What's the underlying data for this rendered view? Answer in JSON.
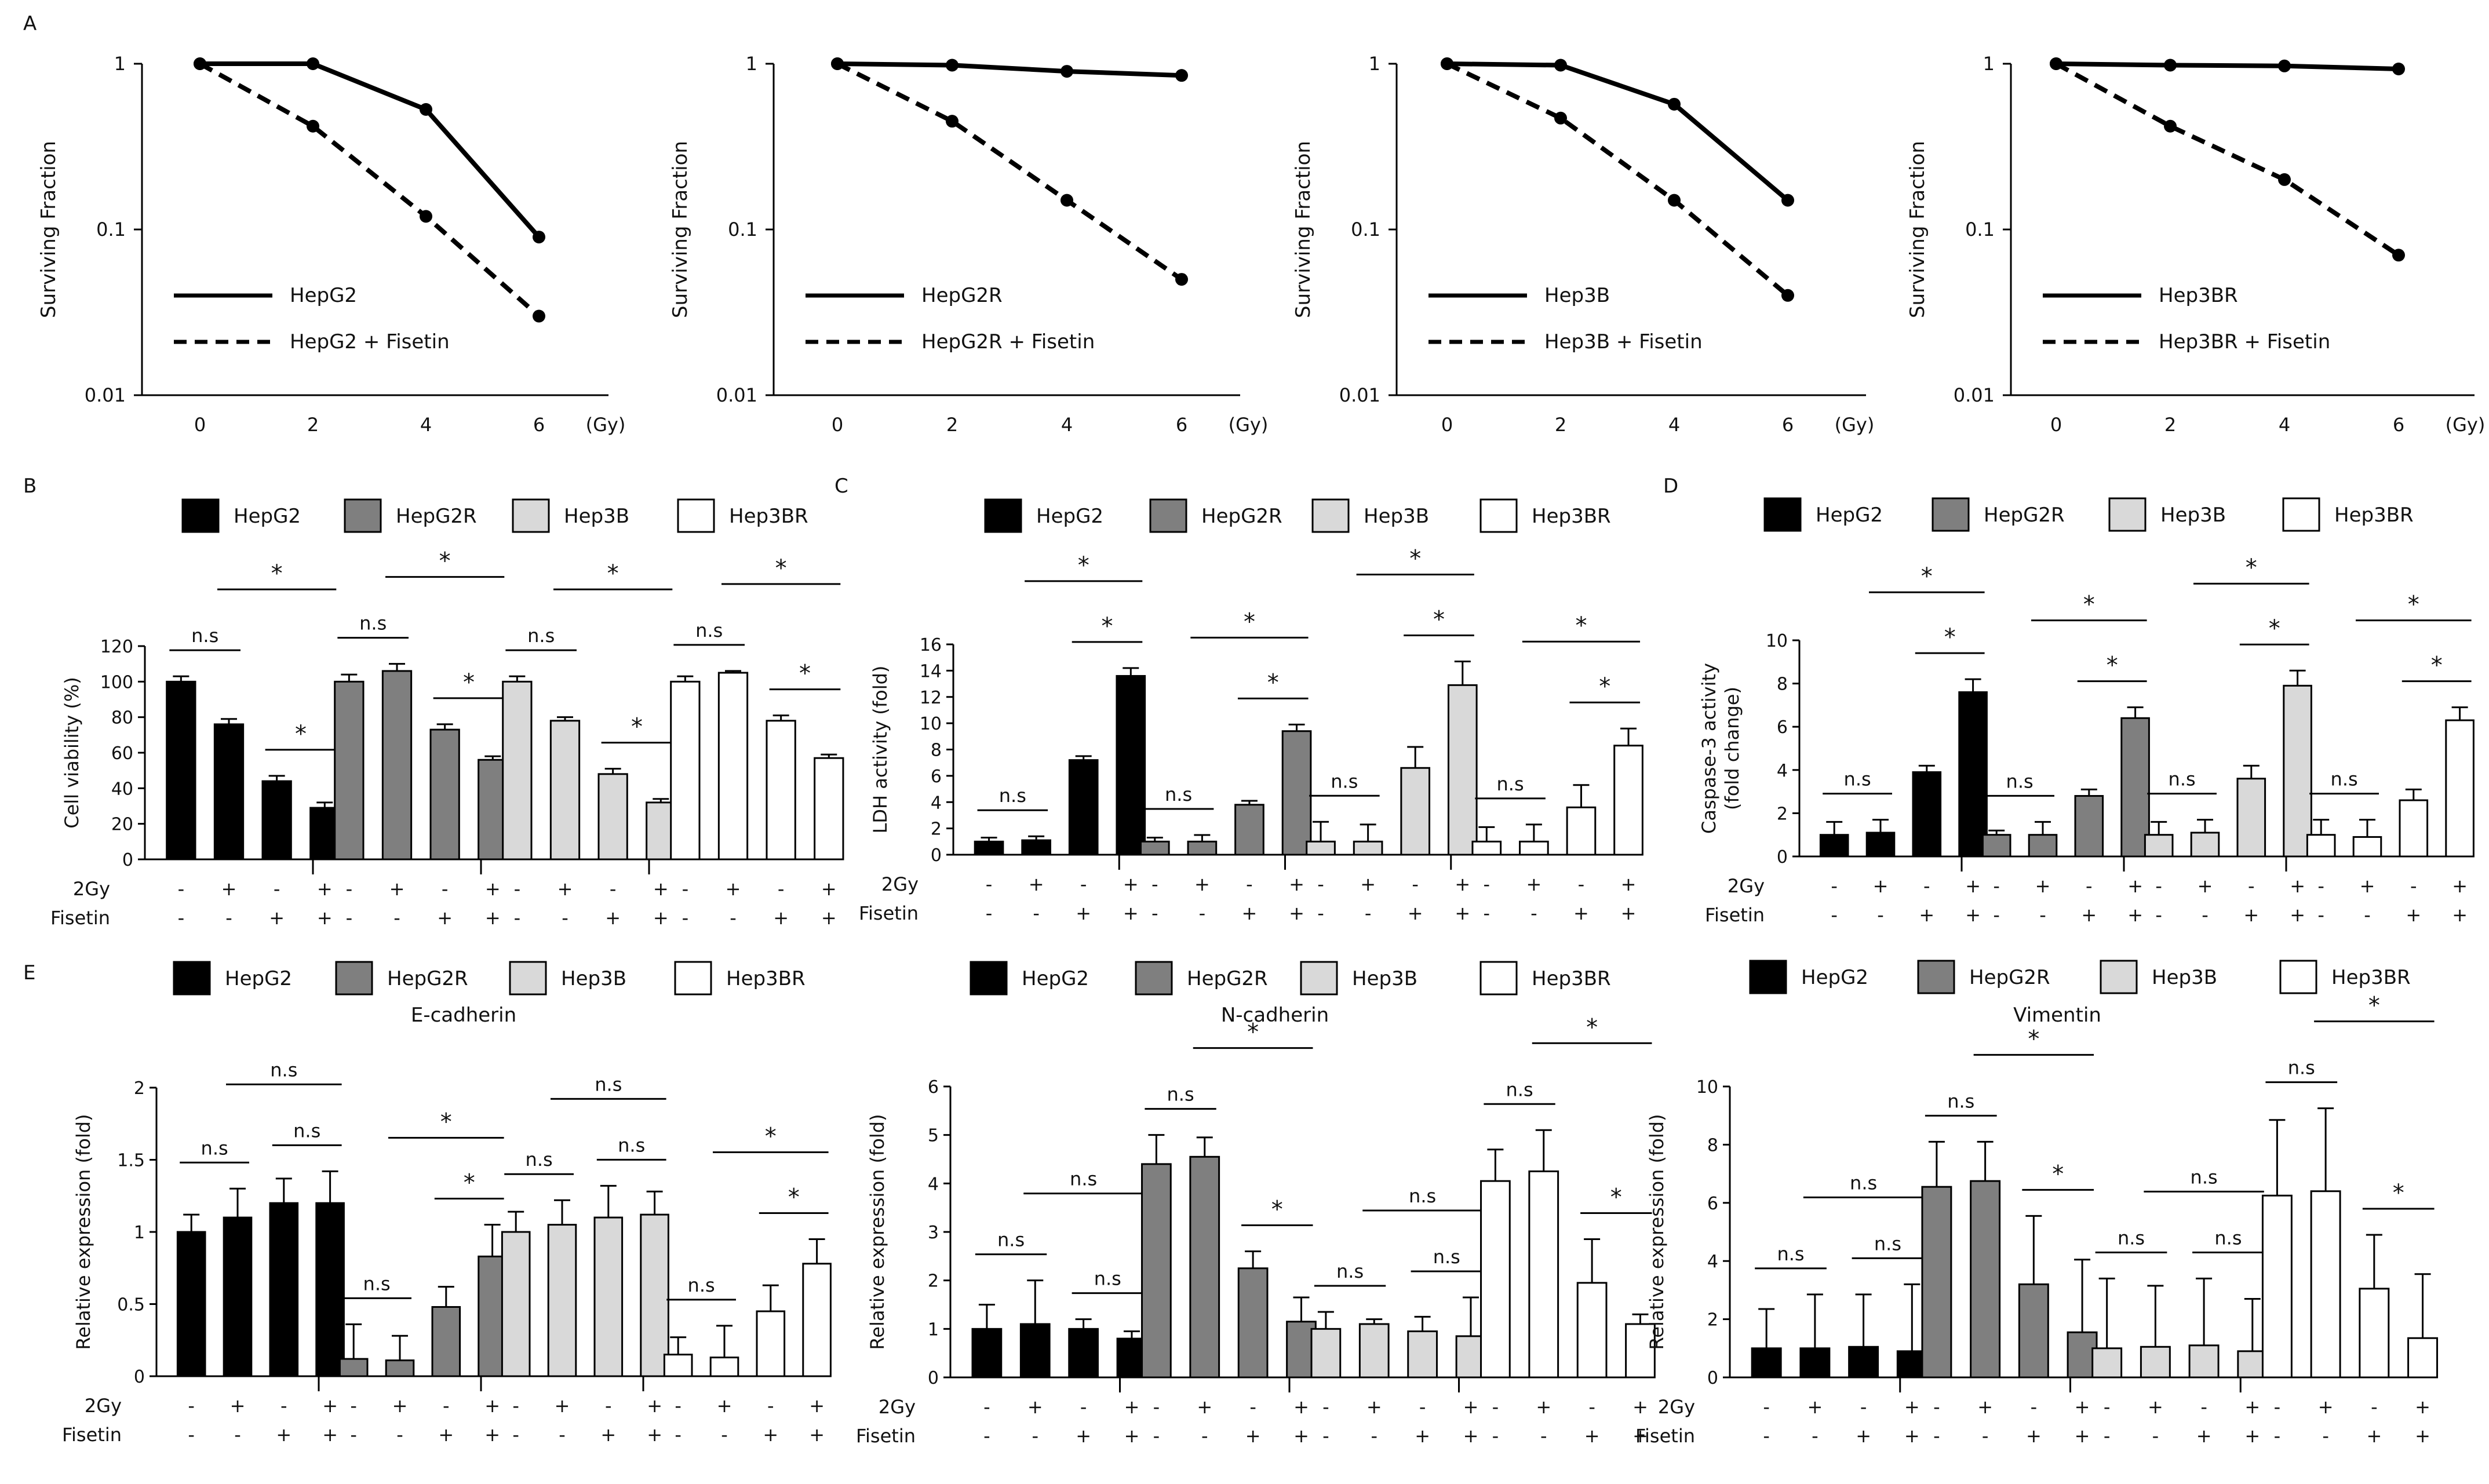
{
  "panel_labels": {
    "A": "A",
    "B": "B",
    "C": "C",
    "D": "D",
    "E": "E"
  },
  "colors": {
    "HepG2": "#000000",
    "HepG2R": "#7f7f7f",
    "Hep3B": "#d9d9d9",
    "Hep3BR": "#ffffff"
  },
  "row_labels": {
    "radiation": "2Gy",
    "fisetin": "Fisetin"
  },
  "chart_data": [
    {
      "id": "A1",
      "type": "line",
      "yscale": "log",
      "title": "",
      "xlabel": "(Gy)",
      "ylabel": "Surviving Fraction",
      "x": [
        0,
        2,
        4,
        6
      ],
      "ylim": [
        0.01,
        1
      ],
      "yticks": [
        "1",
        "0.1",
        "0.01"
      ],
      "xticks": [
        "0",
        "2",
        "4",
        "6"
      ],
      "series": [
        {
          "name": "HepG2",
          "style": "solid",
          "values": [
            1,
            1,
            0.53,
            0.09
          ]
        },
        {
          "name": "HepG2 + Fisetin",
          "style": "dashed",
          "values": [
            1,
            0.42,
            0.12,
            0.03
          ]
        }
      ]
    },
    {
      "id": "A2",
      "type": "line",
      "yscale": "log",
      "title": "",
      "xlabel": "(Gy)",
      "ylabel": "Surviving Fraction",
      "x": [
        0,
        2,
        4,
        6
      ],
      "ylim": [
        0.01,
        1
      ],
      "yticks": [
        "1",
        "0.1",
        "0.01"
      ],
      "xticks": [
        "0",
        "2",
        "4",
        "6"
      ],
      "series": [
        {
          "name": "HepG2R",
          "style": "solid",
          "values": [
            1,
            0.98,
            0.9,
            0.85
          ]
        },
        {
          "name": "HepG2R + Fisetin",
          "style": "dashed",
          "values": [
            1,
            0.45,
            0.15,
            0.05
          ]
        }
      ]
    },
    {
      "id": "A3",
      "type": "line",
      "yscale": "log",
      "title": "",
      "xlabel": "(Gy)",
      "ylabel": "Surviving Fraction",
      "x": [
        0,
        2,
        4,
        6
      ],
      "ylim": [
        0.01,
        1
      ],
      "yticks": [
        "1",
        "0.1",
        "0.01"
      ],
      "xticks": [
        "0",
        "2",
        "4",
        "6"
      ],
      "series": [
        {
          "name": "Hep3B",
          "style": "solid",
          "values": [
            1,
            0.98,
            0.57,
            0.15
          ]
        },
        {
          "name": "Hep3B + Fisetin",
          "style": "dashed",
          "values": [
            1,
            0.47,
            0.15,
            0.04
          ]
        }
      ]
    },
    {
      "id": "A4",
      "type": "line",
      "yscale": "log",
      "title": "",
      "xlabel": "(Gy)",
      "ylabel": "Surviving Fraction",
      "x": [
        0,
        2,
        4,
        6
      ],
      "ylim": [
        0.01,
        1
      ],
      "yticks": [
        "1",
        "0.1",
        "0.01"
      ],
      "xticks": [
        "0",
        "2",
        "4",
        "6"
      ],
      "series": [
        {
          "name": "Hep3BR",
          "style": "solid",
          "values": [
            1,
            0.98,
            0.97,
            0.93
          ]
        },
        {
          "name": "Hep3BR + Fisetin",
          "style": "dashed",
          "values": [
            1,
            0.42,
            0.2,
            0.07
          ]
        }
      ]
    },
    {
      "id": "B",
      "type": "bar",
      "title": "",
      "ylabel": "Cell viability (%)",
      "ylim": [
        0,
        120
      ],
      "yticks": [
        "0",
        "20",
        "40",
        "60",
        "80",
        "100",
        "120"
      ],
      "legend": [
        "HepG2",
        "HepG2R",
        "Hep3B",
        "Hep3BR"
      ],
      "conditions": {
        "2Gy": [
          "-",
          "+",
          "-",
          "+"
        ],
        "Fisetin": [
          "-",
          "-",
          "+",
          "+"
        ]
      },
      "series": [
        {
          "name": "HepG2",
          "values": [
            100,
            76,
            44,
            29
          ],
          "errors": [
            3,
            3,
            3,
            3
          ]
        },
        {
          "name": "HepG2R",
          "values": [
            100,
            106,
            73,
            56
          ],
          "errors": [
            4,
            4,
            3,
            2
          ]
        },
        {
          "name": "Hep3B",
          "values": [
            100,
            78,
            48,
            32
          ],
          "errors": [
            3,
            2,
            3,
            2
          ]
        },
        {
          "name": "Hep3BR",
          "values": [
            100,
            105,
            78,
            57
          ],
          "errors": [
            3,
            1,
            3,
            2
          ]
        }
      ],
      "significance": [
        [
          "n.s",
          "*",
          "*"
        ],
        [
          "n.s",
          "*",
          "*"
        ],
        [
          "n.s",
          "*",
          "*"
        ],
        [
          "n.s",
          "*",
          "*"
        ]
      ]
    },
    {
      "id": "C",
      "type": "bar",
      "title": "",
      "ylabel": "LDH activity (fold)",
      "ylim": [
        0,
        16
      ],
      "yticks": [
        "0",
        "2",
        "4",
        "6",
        "8",
        "10",
        "12",
        "14",
        "16"
      ],
      "legend": [
        "HepG2",
        "HepG2R",
        "Hep3B",
        "Hep3BR"
      ],
      "conditions": {
        "2Gy": [
          "-",
          "+",
          "-",
          "+"
        ],
        "Fisetin": [
          "-",
          "-",
          "+",
          "+"
        ]
      },
      "series": [
        {
          "name": "HepG2",
          "values": [
            1,
            1.1,
            7.2,
            13.6
          ],
          "errors": [
            0.3,
            0.3,
            0.3,
            0.6
          ]
        },
        {
          "name": "HepG2R",
          "values": [
            1,
            1,
            3.8,
            9.4
          ],
          "errors": [
            0.3,
            0.5,
            0.3,
            0.5
          ]
        },
        {
          "name": "Hep3B",
          "values": [
            1,
            1,
            6.6,
            12.9
          ],
          "errors": [
            1.5,
            1.3,
            1.6,
            1.8
          ]
        },
        {
          "name": "Hep3BR",
          "values": [
            1,
            1,
            3.6,
            8.3
          ],
          "errors": [
            1.1,
            1.3,
            1.7,
            1.3
          ]
        }
      ],
      "significance": [
        [
          "n.s",
          "*",
          "*"
        ],
        [
          "n.s",
          "*",
          "*"
        ],
        [
          "n.s",
          "*",
          "*"
        ],
        [
          "n.s",
          "*",
          "*"
        ]
      ]
    },
    {
      "id": "D",
      "type": "bar",
      "title": "",
      "ylabel": "Caspase-3 activity (fold change)",
      "ylim": [
        0,
        10
      ],
      "yticks": [
        "0",
        "2",
        "4",
        "6",
        "8",
        "10"
      ],
      "legend": [
        "HepG2",
        "HepG2R",
        "Hep3B",
        "Hep3BR"
      ],
      "conditions": {
        "2Gy": [
          "-",
          "+",
          "-",
          "+"
        ],
        "Fisetin": [
          "-",
          "-",
          "+",
          "+"
        ]
      },
      "series": [
        {
          "name": "HepG2",
          "values": [
            1,
            1.1,
            3.9,
            7.6
          ],
          "errors": [
            0.6,
            0.6,
            0.3,
            0.6
          ]
        },
        {
          "name": "HepG2R",
          "values": [
            1,
            1,
            2.8,
            6.4
          ],
          "errors": [
            0.2,
            0.6,
            0.3,
            0.5
          ]
        },
        {
          "name": "Hep3B",
          "values": [
            1,
            1.1,
            3.6,
            7.9
          ],
          "errors": [
            0.6,
            0.6,
            0.6,
            0.7
          ]
        },
        {
          "name": "Hep3BR",
          "values": [
            1,
            0.9,
            2.6,
            6.3
          ],
          "errors": [
            0.7,
            0.8,
            0.5,
            0.6
          ]
        }
      ],
      "significance": [
        [
          "n.s",
          "*",
          "*"
        ],
        [
          "n.s",
          "*",
          "*"
        ],
        [
          "n.s",
          "*",
          "*"
        ],
        [
          "n.s",
          "*",
          "*"
        ]
      ]
    },
    {
      "id": "E1",
      "type": "bar",
      "title": "E-cadherin",
      "ylabel": "Relative expression (fold)",
      "ylim": [
        0,
        2
      ],
      "yticks": [
        "0",
        "0.5",
        "1",
        "1.5",
        "2"
      ],
      "legend": [
        "HepG2",
        "HepG2R",
        "Hep3B",
        "Hep3BR"
      ],
      "conditions": {
        "2Gy": [
          "-",
          "+",
          "-",
          "+"
        ],
        "Fisetin": [
          "-",
          "-",
          "+",
          "+"
        ]
      },
      "series": [
        {
          "name": "HepG2",
          "values": [
            1,
            1.1,
            1.2,
            1.2
          ],
          "errors": [
            0.12,
            0.2,
            0.17,
            0.22
          ]
        },
        {
          "name": "HepG2R",
          "values": [
            0.12,
            0.11,
            0.48,
            0.83
          ],
          "errors": [
            0.24,
            0.17,
            0.14,
            0.22
          ]
        },
        {
          "name": "Hep3B",
          "values": [
            1,
            1.05,
            1.1,
            1.12
          ],
          "errors": [
            0.14,
            0.17,
            0.22,
            0.16
          ]
        },
        {
          "name": "Hep3BR",
          "values": [
            0.15,
            0.13,
            0.45,
            0.78
          ],
          "errors": [
            0.12,
            0.22,
            0.18,
            0.17
          ]
        }
      ],
      "significance": [
        [
          "n.s",
          "n.s",
          "n.s"
        ],
        [
          "n.s",
          "*",
          "*"
        ],
        [
          "n.s",
          "n.s",
          "n.s"
        ],
        [
          "n.s",
          "*",
          "*"
        ]
      ]
    },
    {
      "id": "E2",
      "type": "bar",
      "title": "N-cadherin",
      "ylabel": "Relative expression (fold)",
      "ylim": [
        0,
        6
      ],
      "yticks": [
        "0",
        "1",
        "2",
        "3",
        "4",
        "5",
        "6"
      ],
      "legend": [
        "HepG2",
        "HepG2R",
        "Hep3B",
        "Hep3BR"
      ],
      "conditions": {
        "2Gy": [
          "-",
          "+",
          "-",
          "+"
        ],
        "Fisetin": [
          "-",
          "-",
          "+",
          "+"
        ]
      },
      "series": [
        {
          "name": "HepG2",
          "values": [
            1,
            1.1,
            1,
            0.8
          ],
          "errors": [
            0.5,
            0.9,
            0.2,
            0.15
          ]
        },
        {
          "name": "HepG2R",
          "values": [
            4.4,
            4.55,
            2.25,
            1.15
          ],
          "errors": [
            0.6,
            0.4,
            0.35,
            0.5
          ]
        },
        {
          "name": "Hep3B",
          "values": [
            1,
            1.1,
            0.95,
            0.85
          ],
          "errors": [
            0.35,
            0.1,
            0.3,
            0.8
          ]
        },
        {
          "name": "Hep3BR",
          "values": [
            4.05,
            4.25,
            1.95,
            1.1
          ],
          "errors": [
            0.65,
            0.85,
            0.9,
            0.2
          ]
        }
      ],
      "significance": [
        [
          "n.s",
          "n.s",
          "n.s"
        ],
        [
          "n.s",
          "*",
          "*"
        ],
        [
          "n.s",
          "n.s",
          "n.s"
        ],
        [
          "n.s",
          "*",
          "*"
        ]
      ]
    },
    {
      "id": "E3",
      "type": "bar",
      "title": "Vimentin",
      "ylabel": "Relative expression (fold)",
      "ylim": [
        0,
        10
      ],
      "yticks": [
        "0",
        "2",
        "4",
        "6",
        "8",
        "10"
      ],
      "legend": [
        "HepG2",
        "HepG2R",
        "Hep3B",
        "Hep3BR"
      ],
      "conditions": {
        "2Gy": [
          "-",
          "+",
          "-",
          "+"
        ],
        "Fisetin": [
          "-",
          "-",
          "+",
          "+"
        ]
      },
      "series": [
        {
          "name": "HepG2",
          "values": [
            1,
            1,
            1.05,
            0.9
          ],
          "errors": [
            1.35,
            1.85,
            1.8,
            2.3
          ]
        },
        {
          "name": "HepG2R",
          "values": [
            6.55,
            6.75,
            3.2,
            1.55
          ],
          "errors": [
            1.55,
            1.35,
            2.35,
            2.5
          ]
        },
        {
          "name": "Hep3B",
          "values": [
            1,
            1.05,
            1.1,
            0.9
          ],
          "errors": [
            2.4,
            2.1,
            2.3,
            1.8
          ]
        },
        {
          "name": "Hep3BR",
          "values": [
            6.25,
            6.4,
            3.05,
            1.35
          ],
          "errors": [
            2.6,
            2.85,
            1.85,
            2.2
          ]
        }
      ],
      "significance": [
        [
          "n.s",
          "n.s",
          "n.s"
        ],
        [
          "n.s",
          "*",
          "*"
        ],
        [
          "n.s",
          "n.s",
          "n.s"
        ],
        [
          "n.s",
          "*",
          "*"
        ]
      ]
    }
  ]
}
